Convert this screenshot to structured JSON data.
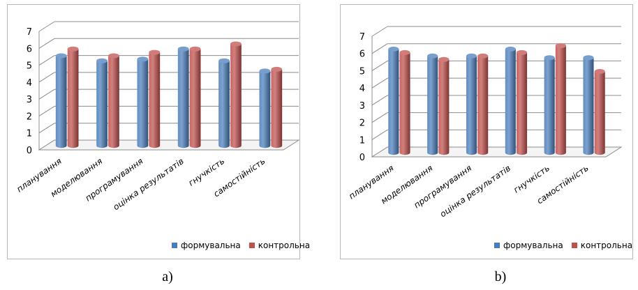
{
  "chart_data": [
    {
      "type": "bar",
      "caption": "a)",
      "categories": [
        "планування",
        "моделювання",
        "програмування",
        "оцінка результатів",
        "гнучкість",
        "самостійність"
      ],
      "series": [
        {
          "name": "формувальна",
          "color": "#4a7ebb",
          "values": [
            5.3,
            5.0,
            5.1,
            5.7,
            5.0,
            4.4
          ]
        },
        {
          "name": "контрольна",
          "color": "#c0504d",
          "values": [
            5.7,
            5.3,
            5.5,
            5.7,
            6.0,
            4.5
          ]
        }
      ],
      "ylim": [
        0,
        7
      ],
      "yticks": [
        "0",
        "1",
        "2",
        "3",
        "4",
        "5",
        "6",
        "7"
      ],
      "grid": true,
      "legend": "bottom-right"
    },
    {
      "type": "bar",
      "caption": "b)",
      "categories": [
        "планування",
        "моделювання",
        "програмування",
        "оцінка результатів",
        "гнучкість",
        "самостійність"
      ],
      "series": [
        {
          "name": "формувальна",
          "color": "#4a7ebb",
          "values": [
            6.0,
            5.6,
            5.6,
            6.0,
            5.5,
            5.5
          ]
        },
        {
          "name": "контрольна",
          "color": "#c0504d",
          "values": [
            5.8,
            5.4,
            5.6,
            5.8,
            6.2,
            4.7
          ]
        }
      ],
      "ylim": [
        0,
        7
      ],
      "yticks": [
        "0",
        "1",
        "2",
        "3",
        "4",
        "5",
        "6",
        "7"
      ],
      "grid": true,
      "legend": "bottom-right"
    }
  ]
}
